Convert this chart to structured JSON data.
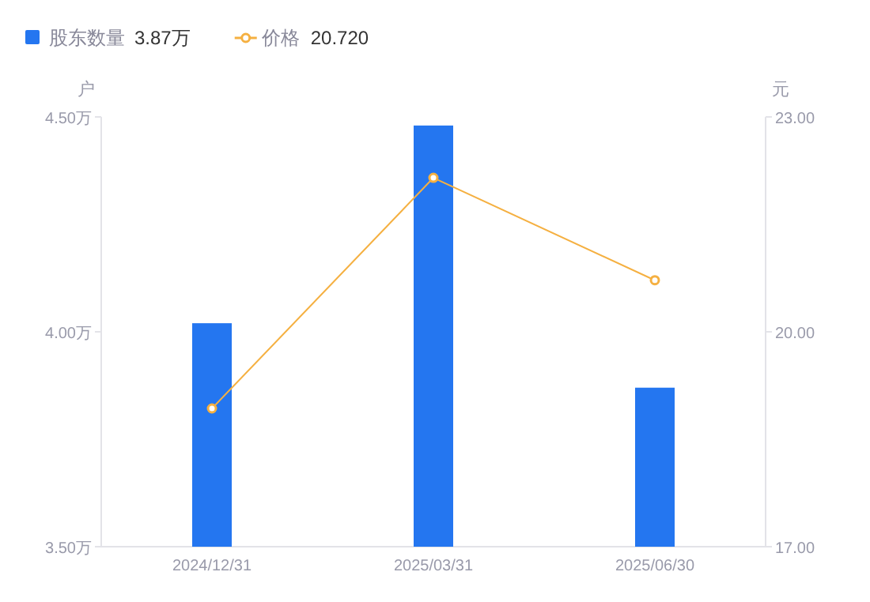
{
  "chart_data": {
    "type": "bar",
    "categories": [
      "2024/12/31",
      "2025/03/31",
      "2025/06/30"
    ],
    "series": [
      {
        "name": "股东数量",
        "color": "#2476f0",
        "values": [
          4.02,
          4.48,
          3.87
        ]
      },
      {
        "name": "价格",
        "type": "line",
        "axis": "y2",
        "color": "#f5b041",
        "marker": "circle",
        "values": [
          18.93,
          22.15,
          20.72
        ]
      }
    ],
    "ylabel": "户",
    "y2label": "元",
    "ylim": [
      3.5,
      4.5
    ],
    "yticks": [
      {
        "value": 3.5,
        "label": "3.50万"
      },
      {
        "value": 4.0,
        "label": "4.00万"
      },
      {
        "value": 4.5,
        "label": "4.50万"
      }
    ],
    "y2lim": [
      17,
      23
    ],
    "y2ticks": [
      {
        "value": 17,
        "label": "17.00"
      },
      {
        "value": 20,
        "label": "20.00"
      },
      {
        "value": 23,
        "label": "23.00"
      }
    ],
    "annotations": [
      "3.87万",
      "20.720"
    ],
    "legend": "top left",
    "grid": false
  }
}
